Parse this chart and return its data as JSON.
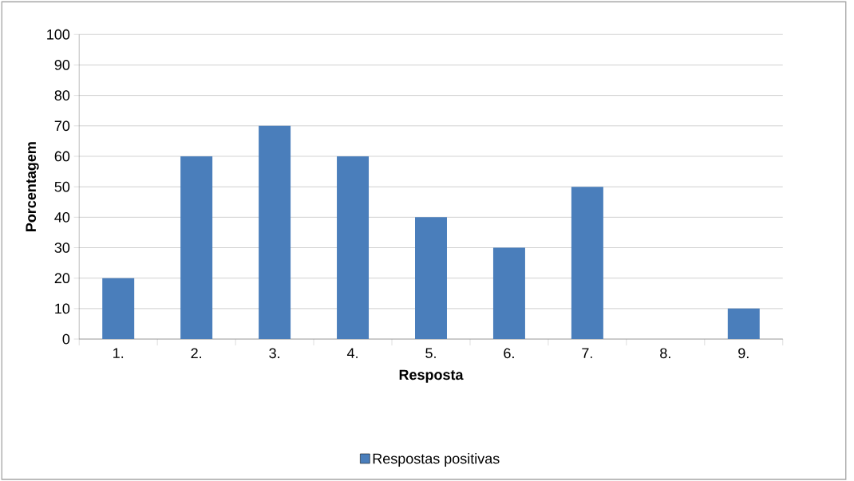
{
  "chart_data": {
    "type": "bar",
    "xlabel": "Resposta",
    "ylabel": "Porcentagem",
    "categories": [
      "1.",
      "2.",
      "3.",
      "4.",
      "5.",
      "6.",
      "7.",
      "8.",
      "9."
    ],
    "series": [
      {
        "name": "Respostas positivas",
        "color": "#4a7ebb",
        "values": [
          20,
          60,
          70,
          60,
          40,
          30,
          50,
          0,
          10
        ]
      }
    ],
    "ylim": [
      0,
      100
    ],
    "yticks": [
      0,
      10,
      20,
      30,
      40,
      50,
      60,
      70,
      80,
      90,
      100
    ],
    "grid": "y",
    "legend": "bottom"
  }
}
